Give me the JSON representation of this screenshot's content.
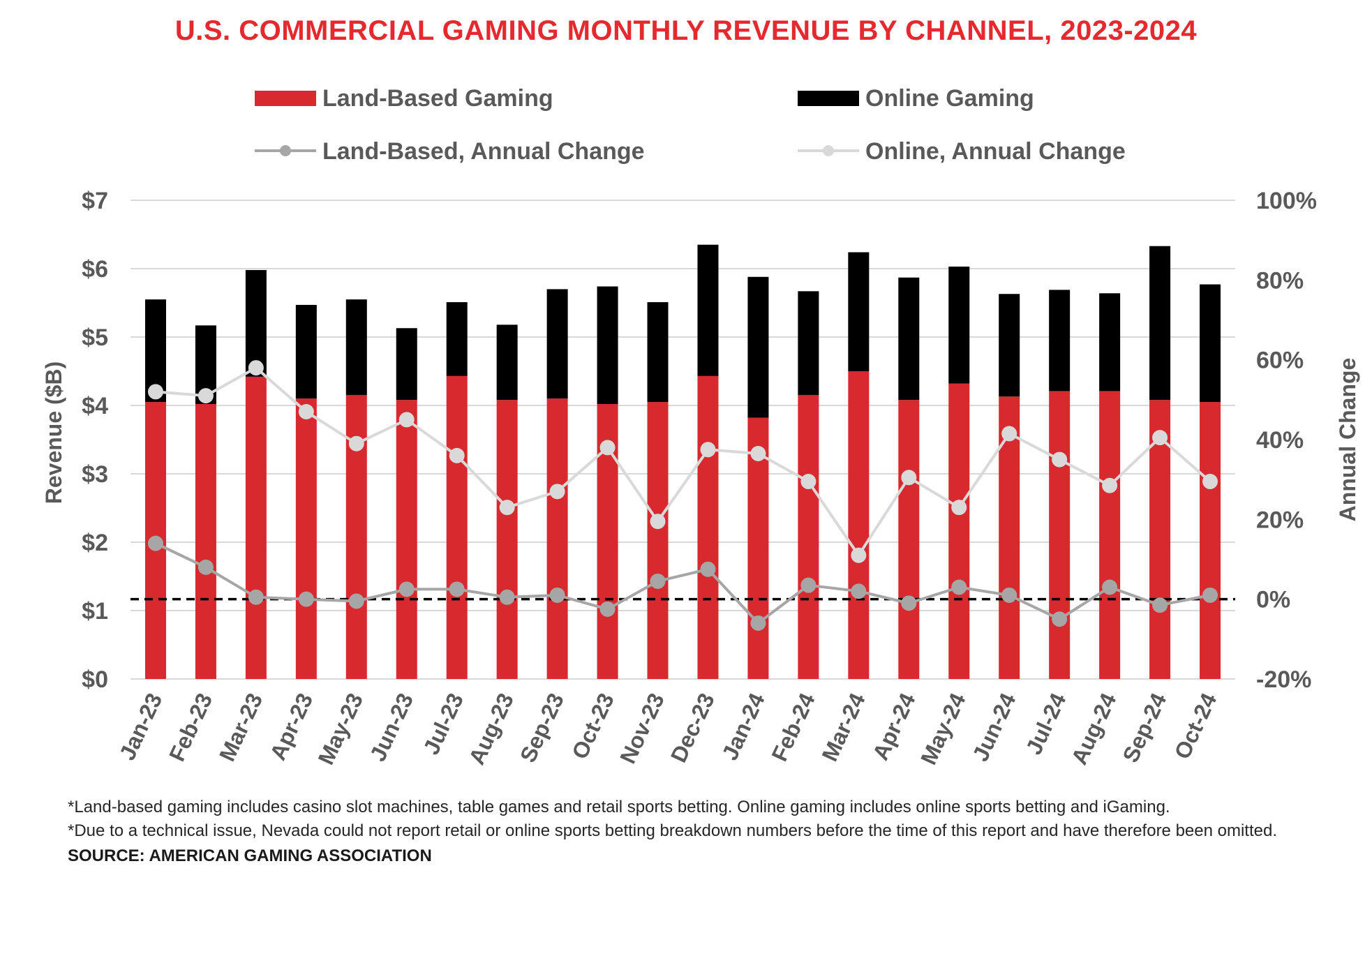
{
  "title": "U.S. COMMERCIAL GAMING MONTHLY REVENUE BY CHANNEL, 2023-2024",
  "colors": {
    "land_based": "#d8292f",
    "online": "#000000",
    "land_change": "#a6a6a6",
    "online_change": "#d9d9d9",
    "title": "#e5292f",
    "text": "#595959",
    "grid": "#d9d9d9"
  },
  "chart_data": {
    "type": "bar",
    "stacked": true,
    "categories": [
      "Jan-23",
      "Feb-23",
      "Mar-23",
      "Apr-23",
      "May-23",
      "Jun-23",
      "Jul-23",
      "Aug-23",
      "Sep-23",
      "Oct-23",
      "Nov-23",
      "Dec-23",
      "Jan-24",
      "Feb-24",
      "Mar-24",
      "Apr-24",
      "May-24",
      "Jun-24",
      "Jul-24",
      "Aug-24",
      "Sep-24",
      "Oct-24"
    ],
    "series": [
      {
        "name": "Land-Based Gaming",
        "kind": "bar",
        "axis": "left",
        "values": [
          4.05,
          4.02,
          4.42,
          4.1,
          4.15,
          4.08,
          4.43,
          4.08,
          4.1,
          4.02,
          4.05,
          4.43,
          3.82,
          4.15,
          4.5,
          4.08,
          4.32,
          4.13,
          4.21,
          4.21,
          4.08,
          4.05
        ]
      },
      {
        "name": "Online Gaming",
        "kind": "bar",
        "axis": "left",
        "values": [
          1.5,
          1.15,
          1.56,
          1.37,
          1.4,
          1.05,
          1.08,
          1.1,
          1.6,
          1.72,
          1.46,
          1.92,
          2.06,
          1.52,
          1.74,
          1.79,
          1.71,
          1.5,
          1.48,
          1.43,
          2.25,
          1.72
        ]
      },
      {
        "name": "Land-Based, Annual Change",
        "kind": "line",
        "axis": "right",
        "values": [
          14,
          8,
          0.5,
          0,
          -0.5,
          2.5,
          2.5,
          0.5,
          1,
          -2.5,
          4.5,
          7.5,
          -6,
          3.5,
          2,
          -1,
          3,
          1,
          -5,
          3,
          -1.5,
          1
        ]
      },
      {
        "name": "Online, Annual Change",
        "kind": "line",
        "axis": "right",
        "values": [
          52,
          51,
          58,
          47,
          39,
          45,
          36,
          23,
          27,
          38,
          19.5,
          37.5,
          36.5,
          29.5,
          11,
          30.5,
          23,
          41.5,
          35,
          28.5,
          40.5,
          29.5
        ]
      }
    ],
    "ylabel": "Revenue ($B)",
    "ylim": [
      0,
      7
    ],
    "y_ticks": [
      "$0",
      "$1",
      "$2",
      "$3",
      "$4",
      "$5",
      "$6",
      "$7"
    ],
    "y2label": "Annual Change",
    "y2lim": [
      -20,
      100
    ],
    "y2_ticks": [
      "-20%",
      "0%",
      "20%",
      "40%",
      "60%",
      "80%",
      "100%"
    ],
    "zero_reference_line": "dashed",
    "grid": true,
    "legend_position": "top"
  },
  "footnotes": {
    "note1": "*Land-based gaming includes casino slot machines, table games and retail sports betting. Online gaming includes online sports betting and iGaming.",
    "note2": "*Due to a technical issue, Nevada could not report retail or online sports betting breakdown numbers before the time of this report and have therefore been omitted.",
    "source": "SOURCE: AMERICAN GAMING ASSOCIATION"
  }
}
